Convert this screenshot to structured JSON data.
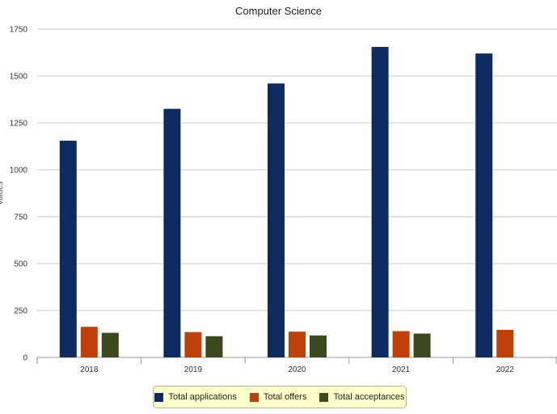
{
  "chart_data": {
    "type": "bar",
    "title": "Computer Science",
    "xlabel": "",
    "ylabel": "Values",
    "categories": [
      "2018",
      "2019",
      "2020",
      "2021",
      "2022"
    ],
    "series": [
      {
        "name": "Total applications",
        "color": "#0d2b5e",
        "values": [
          1155,
          1325,
          1460,
          1655,
          1620
        ]
      },
      {
        "name": "Total offers",
        "color": "#c0400a",
        "values": [
          163,
          135,
          137,
          140,
          147
        ]
      },
      {
        "name": "Total acceptances",
        "color": "#3a4a1e",
        "values": [
          131,
          113,
          117,
          127,
          null
        ]
      }
    ],
    "ylim": [
      0,
      1750
    ],
    "yticks": [
      0,
      250,
      500,
      750,
      1000,
      1250,
      1500,
      1750
    ],
    "grid": true,
    "legend_position": "bottom"
  }
}
